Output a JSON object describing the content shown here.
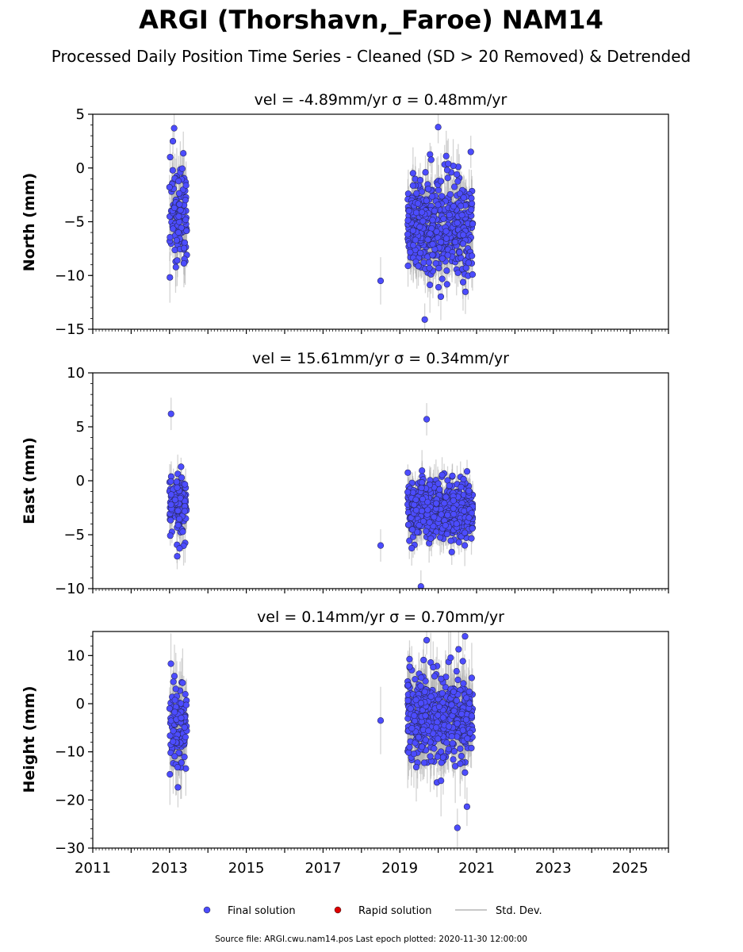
{
  "title": "ARGI (Thorshavn,_Faroe) NAM14",
  "subtitle": "Processed Daily Position Time Series - Cleaned (SD > 20 Removed) & Detrended",
  "legend": {
    "final": "Final solution",
    "rapid": "Rapid solution",
    "stddev": "Std. Dev."
  },
  "footer": "Source file: ARGI.cwu.nam14.pos  Last epoch plotted: 2020-11-30 12:00:00",
  "colors": {
    "final": "#4c4cff",
    "rapid": "#dd0000",
    "stddev": "#b0b0b0"
  },
  "chart_data": [
    {
      "type": "scatter",
      "title": "vel = -4.89mm/yr   σ = 0.48mm/yr",
      "ylabel": "North (mm)",
      "xlim": [
        2011,
        2026
      ],
      "ylim": [
        -15,
        5
      ],
      "yticks": [
        -15,
        -10,
        -5,
        0,
        5
      ],
      "ytick_labels": [
        "−15",
        "−10",
        "−5",
        "0",
        "5"
      ],
      "clusters": [
        {
          "x": [
            2013.0,
            2013.45
          ],
          "center": -4.0,
          "spread": 2.8,
          "n": 120,
          "err": 2.2
        },
        {
          "x": [
            2019.2,
            2020.9
          ],
          "center": -5.5,
          "spread": 2.6,
          "n": 520,
          "err": 2.0
        }
      ],
      "points": [
        {
          "x": 2018.5,
          "y": -10.5,
          "err": 2.2
        },
        {
          "x": 2013.12,
          "y": 3.7,
          "err": 1.5
        },
        {
          "x": 2019.65,
          "y": -14.1,
          "err": 1.5
        },
        {
          "x": 2020.0,
          "y": 3.8,
          "err": 1.5
        },
        {
          "x": 2020.85,
          "y": 1.5,
          "err": 1.5
        }
      ]
    },
    {
      "type": "scatter",
      "title": "vel = 15.61mm/yr   σ = 0.34mm/yr",
      "ylabel": "East (mm)",
      "xlim": [
        2011,
        2026
      ],
      "ylim": [
        -10,
        10
      ],
      "yticks": [
        -10,
        -5,
        0,
        5,
        10
      ],
      "ytick_labels": [
        "−10",
        "−5",
        "0",
        "5",
        "10"
      ],
      "clusters": [
        {
          "x": [
            2013.0,
            2013.45
          ],
          "center": -2.3,
          "spread": 1.7,
          "n": 120,
          "err": 1.4
        },
        {
          "x": [
            2019.2,
            2020.9
          ],
          "center": -2.6,
          "spread": 1.8,
          "n": 520,
          "err": 1.4
        }
      ],
      "points": [
        {
          "x": 2018.5,
          "y": -6.0,
          "err": 1.5
        },
        {
          "x": 2013.04,
          "y": 6.2,
          "err": 1.5
        },
        {
          "x": 2019.7,
          "y": 5.7,
          "err": 1.5
        },
        {
          "x": 2019.55,
          "y": -9.8,
          "err": 1.5
        },
        {
          "x": 2013.2,
          "y": -7.0,
          "err": 1.2
        }
      ]
    },
    {
      "type": "scatter",
      "title": "vel = 0.14mm/yr   σ = 0.70mm/yr",
      "ylabel": "Height (mm)",
      "xlim": [
        2011,
        2026
      ],
      "ylim": [
        -30,
        15
      ],
      "yticks": [
        -30,
        -20,
        -10,
        0,
        10
      ],
      "ytick_labels": [
        "−30",
        "−20",
        "−10",
        "0",
        "10"
      ],
      "xticks": [
        2011,
        2013,
        2015,
        2017,
        2019,
        2021,
        2023,
        2025
      ],
      "xtick_labels": [
        "2011",
        "2013",
        "2015",
        "2017",
        "2019",
        "2021",
        "2023",
        "2025"
      ],
      "clusters": [
        {
          "x": [
            2013.0,
            2013.45
          ],
          "center": -6.0,
          "spread": 5.5,
          "n": 120,
          "err": 5.5
        },
        {
          "x": [
            2019.2,
            2020.9
          ],
          "center": -3.0,
          "spread": 5.5,
          "n": 520,
          "err": 5.5
        }
      ],
      "points": [
        {
          "x": 2018.5,
          "y": -3.5,
          "err": 7.0
        },
        {
          "x": 2020.5,
          "y": -25.8,
          "err": 4.0
        },
        {
          "x": 2020.75,
          "y": -21.4,
          "err": 4.0
        },
        {
          "x": 2020.7,
          "y": 14.0,
          "err": 3.0
        },
        {
          "x": 2019.7,
          "y": 13.2,
          "err": 3.0
        }
      ]
    }
  ]
}
